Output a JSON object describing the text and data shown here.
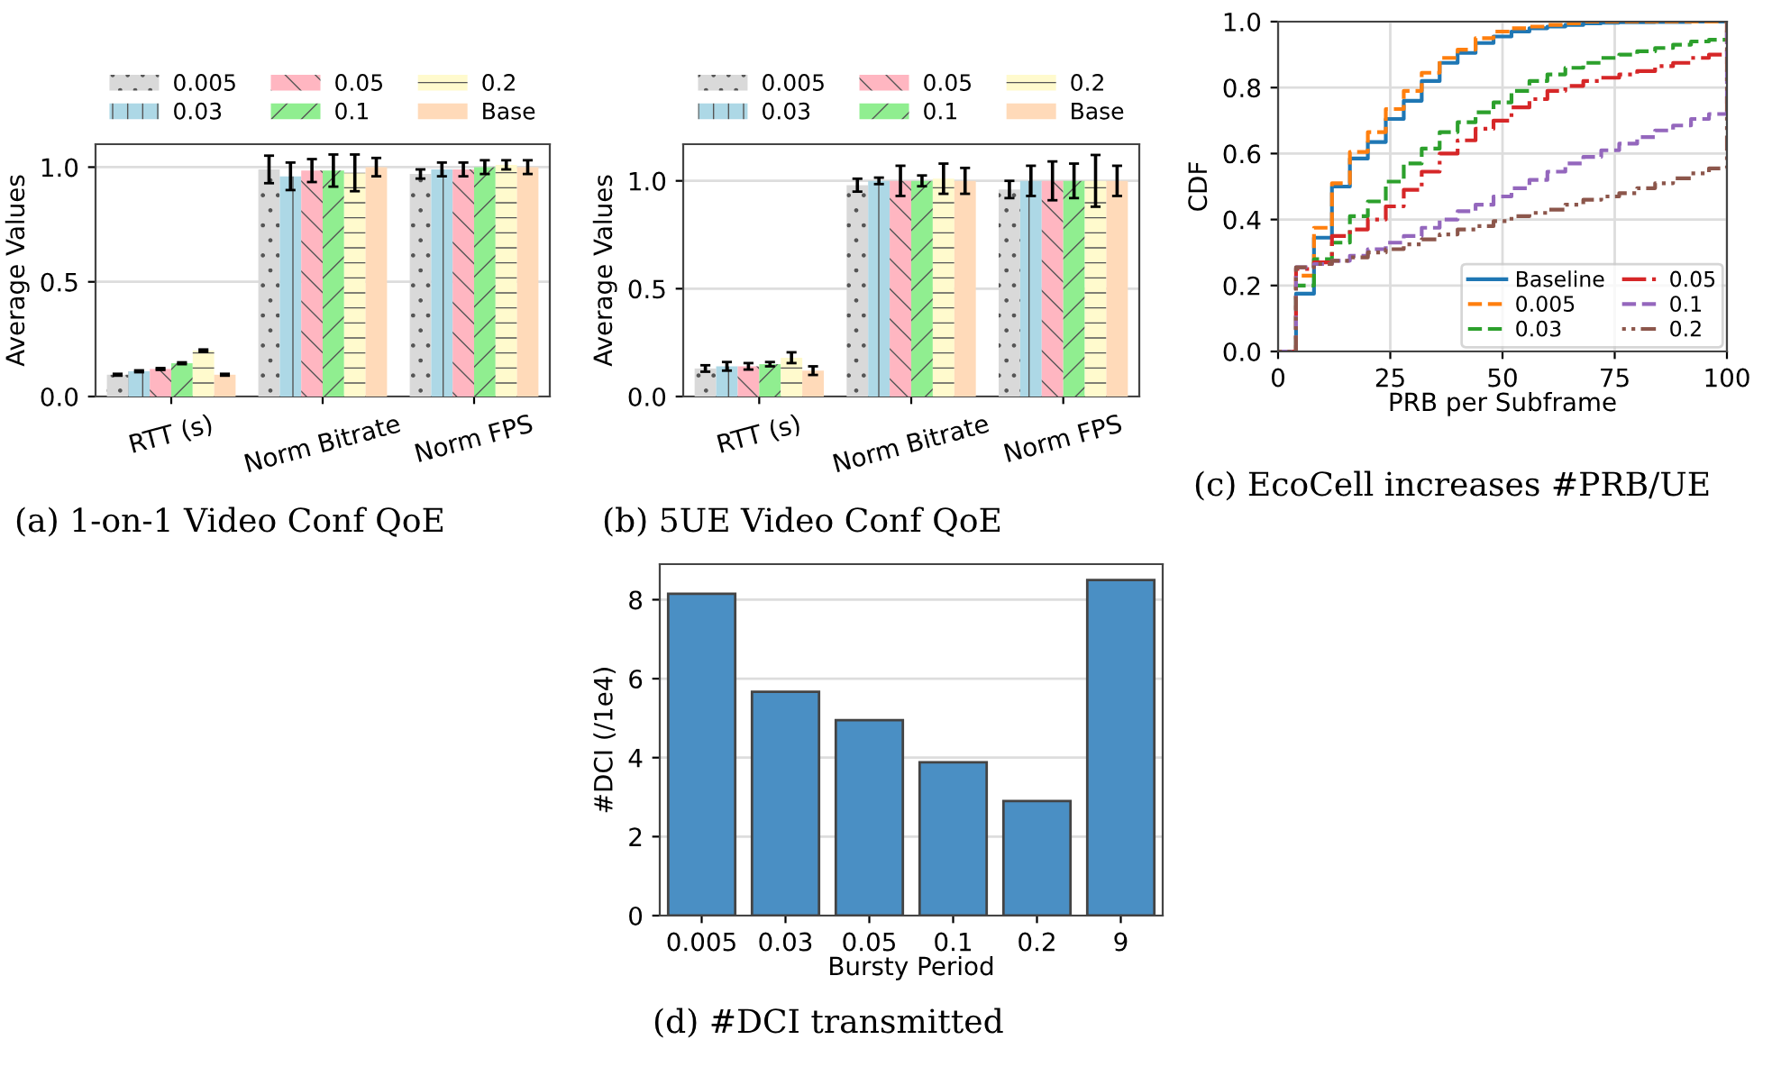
{
  "chart_data": [
    {
      "type": "bar",
      "title": "(a) 1-on-1 Video Conf QoE",
      "ylabel": "Average Values",
      "categories": [
        "RTT (s)",
        "Norm Bitrate",
        "Norm FPS"
      ],
      "ylim": [
        0,
        1.1
      ],
      "yticks": [
        {
          "value": 0,
          "label": "0.0"
        },
        {
          "value": 0.5,
          "label": "0.5"
        },
        {
          "value": 1,
          "label": "1.0"
        }
      ],
      "grid": "y",
      "legend": "top",
      "series": [
        {
          "name": "0.005",
          "color": "#d9d9d9",
          "values": [
            0.095,
            0.99,
            0.97
          ],
          "errors": [
            0.004,
            0.06,
            0.02
          ]
        },
        {
          "name": "0.03",
          "color": "#add8e6",
          "values": [
            0.11,
            0.96,
            0.99
          ],
          "errors": [
            0.004,
            0.06,
            0.03
          ]
        },
        {
          "name": "0.05",
          "color": "#ffb6c1",
          "values": [
            0.12,
            0.985,
            0.99
          ],
          "errors": [
            0.004,
            0.05,
            0.03
          ]
        },
        {
          "name": "0.1",
          "color": "#90ee90",
          "values": [
            0.145,
            0.985,
            1.0
          ],
          "errors": [
            0.004,
            0.07,
            0.03
          ]
        },
        {
          "name": "0.2",
          "color": "#fffacd",
          "values": [
            0.2,
            0.975,
            1.01
          ],
          "errors": [
            0.005,
            0.08,
            0.02
          ]
        },
        {
          "name": "Base",
          "color": "#ffdab9",
          "values": [
            0.095,
            1.0,
            1.0
          ],
          "errors": [
            0.004,
            0.04,
            0.03
          ]
        }
      ]
    },
    {
      "type": "bar",
      "title": "(b) 5UE Video Conf QoE",
      "ylabel": "Average Values",
      "categories": [
        "RTT (s)",
        "Norm Bitrate",
        "Norm FPS"
      ],
      "ylim": [
        0,
        1.17
      ],
      "yticks": [
        {
          "value": 0,
          "label": "0.0"
        },
        {
          "value": 0.5,
          "label": "0.5"
        },
        {
          "value": 1,
          "label": "1.0"
        }
      ],
      "grid": "y",
      "legend": "top",
      "series": [
        {
          "name": "0.005",
          "color": "#d9d9d9",
          "values": [
            0.13,
            0.98,
            0.96
          ],
          "errors": [
            0.015,
            0.03,
            0.04
          ]
        },
        {
          "name": "0.03",
          "color": "#add8e6",
          "values": [
            0.14,
            1.0,
            1.0
          ],
          "errors": [
            0.02,
            0.015,
            0.07
          ]
        },
        {
          "name": "0.05",
          "color": "#ffb6c1",
          "values": [
            0.14,
            1.0,
            1.0
          ],
          "errors": [
            0.015,
            0.07,
            0.09
          ]
        },
        {
          "name": "0.1",
          "color": "#90ee90",
          "values": [
            0.15,
            1.0,
            1.0
          ],
          "errors": [
            0.01,
            0.025,
            0.08
          ]
        },
        {
          "name": "0.2",
          "color": "#fffacd",
          "values": [
            0.18,
            1.01,
            1.0
          ],
          "errors": [
            0.025,
            0.07,
            0.12
          ]
        },
        {
          "name": "Base",
          "color": "#ffdab9",
          "values": [
            0.12,
            1.0,
            1.0
          ],
          "errors": [
            0.02,
            0.06,
            0.07
          ]
        }
      ]
    },
    {
      "type": "step",
      "title": "(c) EcoCell increases #PRB/UE",
      "xlabel": "PRB per Subframe",
      "ylabel": "CDF",
      "xlim": [
        0,
        100
      ],
      "ylim": [
        0,
        1
      ],
      "xticks": [
        0,
        25,
        50,
        75,
        100
      ],
      "yticks": [
        {
          "value": 0,
          "label": "0.0"
        },
        {
          "value": 0.2,
          "label": "0.2"
        },
        {
          "value": 0.4,
          "label": "0.4"
        },
        {
          "value": 0.6,
          "label": "0.6"
        },
        {
          "value": 0.8,
          "label": "0.8"
        },
        {
          "value": 1,
          "label": "1.0"
        }
      ],
      "grid": true,
      "legend": "bottom right",
      "x": [
        0,
        4,
        8,
        12,
        16,
        20,
        24,
        28,
        32,
        36,
        40,
        44,
        48,
        52,
        56,
        60,
        64,
        68,
        72,
        76,
        80,
        84,
        88,
        92,
        96,
        100
      ],
      "series": [
        {
          "name": "Baseline",
          "color": "#1f77b4",
          "line_style": "solid",
          "values": [
            0,
            0.175,
            0.345,
            0.5,
            0.585,
            0.635,
            0.705,
            0.76,
            0.82,
            0.875,
            0.905,
            0.935,
            0.955,
            0.97,
            0.98,
            0.985,
            0.99,
            0.995,
            0.997,
            0.998,
            0.998,
            0.999,
            0.999,
            1.0,
            1.0,
            1.0
          ]
        },
        {
          "name": "0.005",
          "color": "#ff7f0e",
          "line_style": "dashed",
          "values": [
            0,
            0.23,
            0.375,
            0.51,
            0.605,
            0.665,
            0.735,
            0.79,
            0.845,
            0.89,
            0.915,
            0.95,
            0.97,
            0.98,
            0.985,
            0.99,
            0.995,
            1.0,
            1.0,
            1.0,
            1.0,
            1.0,
            1.0,
            1.0,
            1.0,
            1.0
          ]
        },
        {
          "name": "0.03",
          "color": "#2ca02c",
          "line_style": "dashed",
          "values": [
            0,
            0.2,
            0.28,
            0.33,
            0.41,
            0.455,
            0.515,
            0.57,
            0.615,
            0.665,
            0.695,
            0.725,
            0.755,
            0.79,
            0.82,
            0.84,
            0.86,
            0.875,
            0.89,
            0.9,
            0.91,
            0.92,
            0.93,
            0.94,
            0.945,
            1.0
          ]
        },
        {
          "name": "0.05",
          "color": "#d62728",
          "line_style": "dashdot",
          "values": [
            0,
            0.25,
            0.27,
            0.35,
            0.37,
            0.4,
            0.44,
            0.49,
            0.545,
            0.6,
            0.64,
            0.675,
            0.7,
            0.74,
            0.765,
            0.79,
            0.805,
            0.82,
            0.83,
            0.84,
            0.85,
            0.865,
            0.875,
            0.89,
            0.9,
            1.0
          ]
        },
        {
          "name": "0.1",
          "color": "#9467bd",
          "line_style": "dashed",
          "values": [
            0,
            0.255,
            0.265,
            0.275,
            0.29,
            0.31,
            0.33,
            0.35,
            0.375,
            0.4,
            0.425,
            0.445,
            0.47,
            0.495,
            0.52,
            0.545,
            0.57,
            0.59,
            0.61,
            0.63,
            0.65,
            0.67,
            0.685,
            0.705,
            0.72,
            1.0
          ]
        },
        {
          "name": "0.2",
          "color": "#8c564b",
          "line_style": "dotted",
          "values": [
            0,
            0.255,
            0.265,
            0.275,
            0.285,
            0.3,
            0.31,
            0.325,
            0.34,
            0.355,
            0.37,
            0.38,
            0.395,
            0.41,
            0.42,
            0.43,
            0.445,
            0.46,
            0.47,
            0.48,
            0.495,
            0.51,
            0.525,
            0.54,
            0.555,
            1.0
          ]
        }
      ]
    },
    {
      "type": "bar",
      "title": "(d) #DCI transmitted",
      "xlabel": "Bursty Period",
      "ylabel": "#DCI (/1e4)",
      "categories": [
        "0.005",
        "0.03",
        "0.05",
        "0.1",
        "0.2",
        "9"
      ],
      "ylim": [
        0,
        8.9
      ],
      "yticks": [
        0,
        2,
        4,
        6,
        8
      ],
      "grid": "y",
      "series": [
        {
          "color": "#4a8fc4",
          "values": [
            8.15,
            5.67,
            4.95,
            3.88,
            2.9,
            8.5
          ]
        }
      ]
    }
  ]
}
